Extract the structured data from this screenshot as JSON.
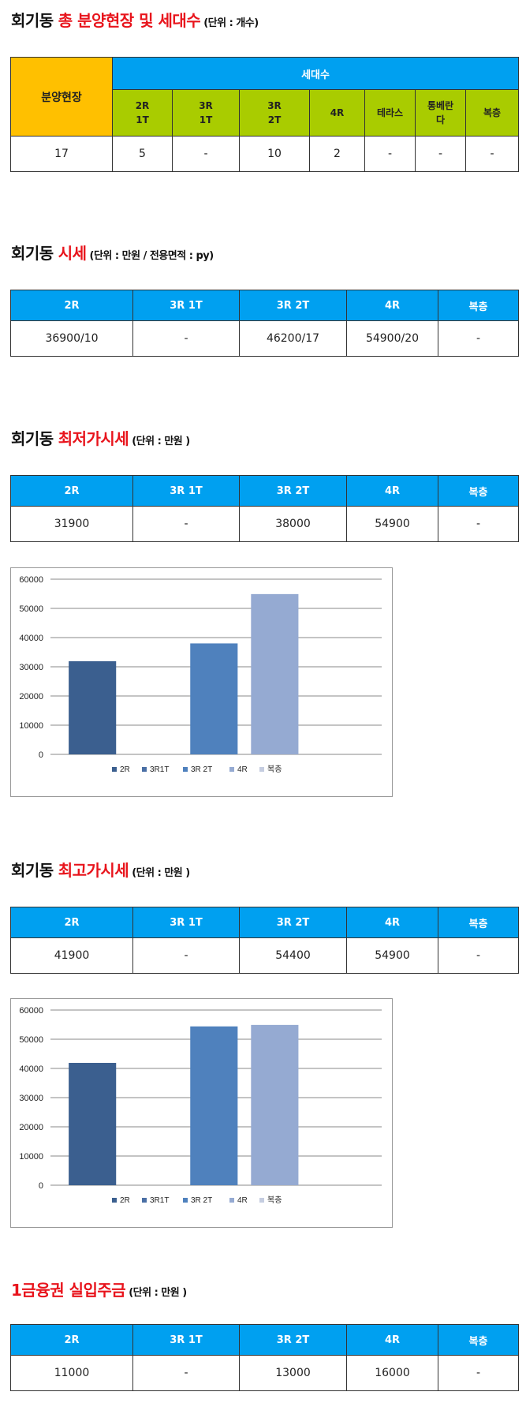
{
  "section1": {
    "title_black": "회기동",
    "title_red": "총 분양현장 및 세대수",
    "unit": "(단위 : 개수)",
    "site_header": "분양현장",
    "group_header": "세대수",
    "columns": [
      [
        "2R",
        "1T"
      ],
      [
        "3R",
        "1T"
      ],
      [
        "3R",
        "2T"
      ],
      [
        "4R"
      ],
      [
        "테라스"
      ],
      [
        "통베란",
        "다"
      ],
      [
        "복층"
      ]
    ],
    "site_value": "17",
    "values": [
      "5",
      "-",
      "10",
      "2",
      "-",
      "-",
      "-"
    ]
  },
  "section2": {
    "title_black": "회기동",
    "title_red": "시세",
    "unit": "(단위 : 만원 / 전용면적 : py)",
    "columns": [
      "2R",
      "3R 1T",
      "3R 2T",
      "4R",
      "복층"
    ],
    "values": [
      "36900/10",
      "-",
      "46200/17",
      "54900/20",
      "-"
    ]
  },
  "section3": {
    "title_black": "회기동",
    "title_red": "최저가시세",
    "unit": "(단위 : 만원 )",
    "columns": [
      "2R",
      "3R 1T",
      "3R 2T",
      "4R",
      "복층"
    ],
    "values": [
      "31900",
      "-",
      "38000",
      "54900",
      "-"
    ]
  },
  "section4": {
    "title_black": "회기동",
    "title_red": "최고가시세",
    "unit": "(단위 : 만원 )",
    "columns": [
      "2R",
      "3R 1T",
      "3R 2T",
      "4R",
      "복층"
    ],
    "values": [
      "41900",
      "-",
      "54400",
      "54900",
      "-"
    ]
  },
  "section5": {
    "title_red": "1금융권 실입주금",
    "unit": "(단위 : 만원 )",
    "columns": [
      "2R",
      "3R 1T",
      "3R 2T",
      "4R",
      "복층"
    ],
    "values": [
      "11000",
      "-",
      "13000",
      "16000",
      "-"
    ]
  },
  "chart_data": [
    {
      "type": "bar",
      "title": "",
      "categories": [
        "2R",
        "3R1T",
        "3R 2T",
        "4R",
        "복층"
      ],
      "values": [
        31900,
        null,
        38000,
        54900,
        null
      ],
      "colors": [
        "#3b5f8f",
        "#4a6fa5",
        "#4f81bd",
        "#95aad2",
        "#c5cde0"
      ],
      "ylim": [
        0,
        60000
      ],
      "yticks": [
        "60000",
        "50000",
        "40000",
        "30000",
        "20000",
        "10000",
        "0"
      ],
      "grid": true,
      "legend": "bottom"
    },
    {
      "type": "bar",
      "title": "",
      "categories": [
        "2R",
        "3R1T",
        "3R 2T",
        "4R",
        "복층"
      ],
      "values": [
        41900,
        null,
        54400,
        54900,
        null
      ],
      "colors": [
        "#3b5f8f",
        "#4a6fa5",
        "#4f81bd",
        "#95aad2",
        "#c5cde0"
      ],
      "ylim": [
        0,
        60000
      ],
      "yticks": [
        "60000",
        "50000",
        "40000",
        "30000",
        "20000",
        "10000",
        "0"
      ],
      "grid": true,
      "legend": "bottom"
    }
  ]
}
